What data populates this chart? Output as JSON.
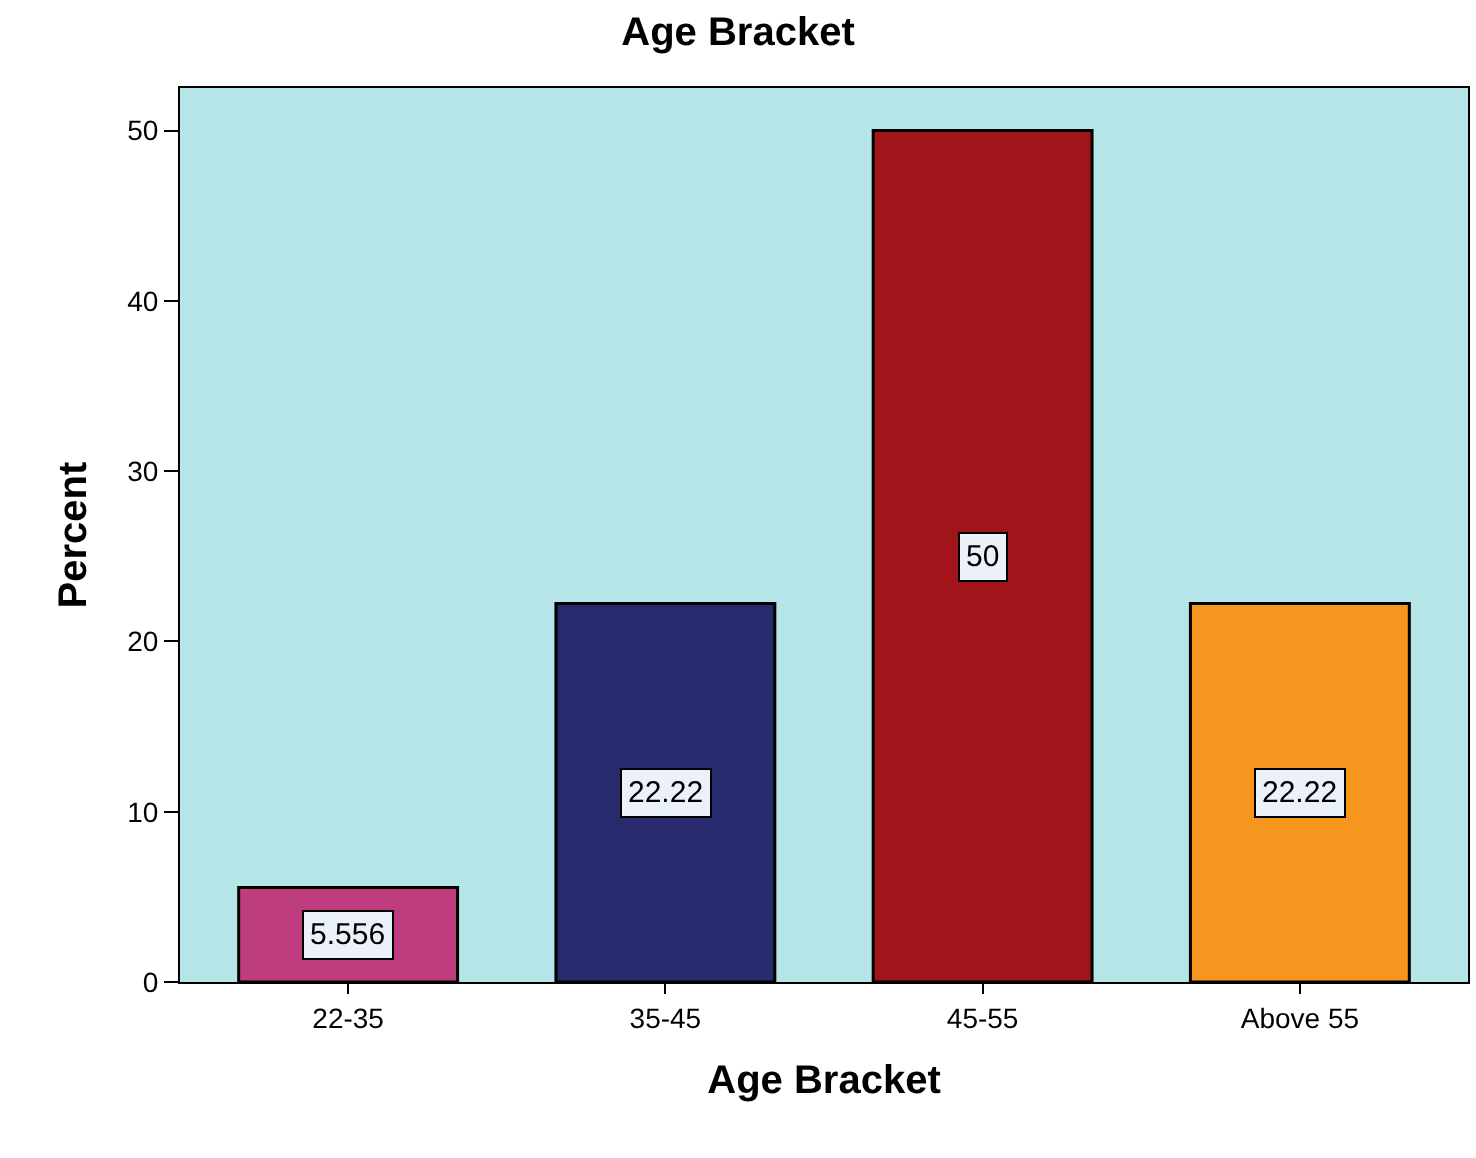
{
  "chart_data": {
    "type": "bar",
    "title": "Age Bracket",
    "xlabel": "Age Bracket",
    "ylabel": "Percent",
    "categories": [
      "22-35",
      "35-45",
      "45-55",
      "Above 55"
    ],
    "values": [
      5.556,
      22.22,
      50,
      22.22
    ],
    "colors": [
      "#be3d7f",
      "#272a6c",
      "#a11419",
      "#f7961e"
    ],
    "ylim": [
      0,
      52.5
    ],
    "yticks": [
      0,
      10,
      20,
      30,
      40,
      50
    ],
    "grid": false,
    "data_labels": true,
    "legend": false
  }
}
